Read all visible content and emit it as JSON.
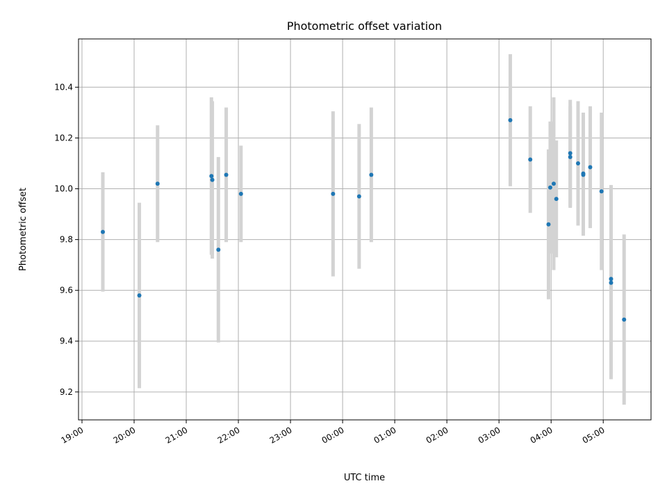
{
  "chart_data": {
    "type": "scatter",
    "title": "Photometric offset variation",
    "xlabel": "UTC time",
    "ylabel": "Photometric offset",
    "x_ticks": [
      "19:00",
      "20:00",
      "21:00",
      "22:00",
      "23:00",
      "00:00",
      "01:00",
      "02:00",
      "03:00",
      "04:00",
      "05:00"
    ],
    "y_ticks": [
      "9.2",
      "9.4",
      "9.6",
      "9.8",
      "10.0",
      "10.2",
      "10.4"
    ],
    "xlim": [
      "18:56",
      "05:55"
    ],
    "ylim": [
      9.09,
      10.59
    ],
    "grid": true,
    "error_bar_color": "#d3d3d3",
    "marker_color": "#1f77b4",
    "points": [
      {
        "x": "19:24",
        "y": 9.83,
        "yerr": 0.235
      },
      {
        "x": "20:06",
        "y": 9.58,
        "yerr": 0.365
      },
      {
        "x": "20:27",
        "y": 10.02,
        "yerr": 0.23
      },
      {
        "x": "21:29",
        "y": 10.05,
        "yerr": 0.31
      },
      {
        "x": "21:30",
        "y": 10.035,
        "yerr": 0.31
      },
      {
        "x": "21:37",
        "y": 9.76,
        "yerr": 0.365
      },
      {
        "x": "21:46",
        "y": 10.055,
        "yerr": 0.265
      },
      {
        "x": "22:03",
        "y": 9.98,
        "yerr": 0.19
      },
      {
        "x": "23:49",
        "y": 9.98,
        "yerr": 0.325
      },
      {
        "x": "00:19",
        "y": 9.97,
        "yerr": 0.285
      },
      {
        "x": "00:33",
        "y": 10.055,
        "yerr": 0.265
      },
      {
        "x": "03:13",
        "y": 10.27,
        "yerr": 0.26
      },
      {
        "x": "03:36",
        "y": 10.115,
        "yerr": 0.21
      },
      {
        "x": "03:57",
        "y": 9.86,
        "yerr": 0.295
      },
      {
        "x": "03:59",
        "y": 10.005,
        "yerr": 0.26
      },
      {
        "x": "04:03",
        "y": 10.02,
        "yerr": 0.34
      },
      {
        "x": "04:06",
        "y": 9.96,
        "yerr": 0.23
      },
      {
        "x": "04:22",
        "y": 10.14,
        "yerr": 0.21
      },
      {
        "x": "04:22",
        "y": 10.125,
        "yerr": 0.2
      },
      {
        "x": "04:31",
        "y": 10.1,
        "yerr": 0.245
      },
      {
        "x": "04:37",
        "y": 10.06,
        "yerr": 0.24
      },
      {
        "x": "04:37",
        "y": 10.055,
        "yerr": 0.24
      },
      {
        "x": "04:45",
        "y": 10.085,
        "yerr": 0.24
      },
      {
        "x": "04:58",
        "y": 9.99,
        "yerr": 0.31
      },
      {
        "x": "05:09",
        "y": 9.645,
        "yerr": 0.37
      },
      {
        "x": "05:09",
        "y": 9.63,
        "yerr": 0.38
      },
      {
        "x": "05:24",
        "y": 9.485,
        "yerr": 0.335
      }
    ]
  }
}
